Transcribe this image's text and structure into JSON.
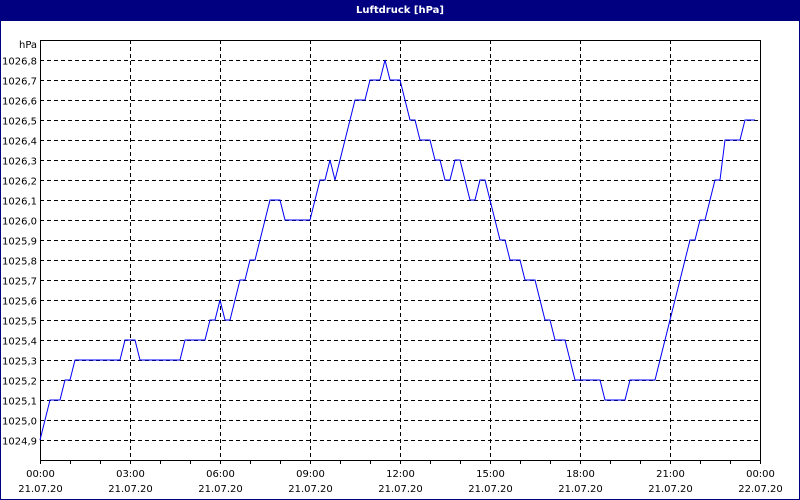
{
  "window": {
    "title": "Luftdruck [hPa]",
    "title_bar_color": "#000080"
  },
  "chart_data": {
    "type": "line",
    "title": "Luftdruck [hPa]",
    "ylabel": "hPa",
    "xlabel": "",
    "ylim": [
      1024.8,
      1026.9
    ],
    "y_ticks": [
      "1026,8",
      "1026,7",
      "1026,6",
      "1026,5",
      "1026,4",
      "1026,3",
      "1026,2",
      "1026,1",
      "1026,0",
      "1025,9",
      "1025,8",
      "1025,7",
      "1025,6",
      "1025,5",
      "1025,4",
      "1025,3",
      "1025,2",
      "1025,1",
      "1025,0",
      "1024,9"
    ],
    "x_range": [
      "21.07.20 00:00",
      "22.07.20 00:00"
    ],
    "x_ticks": [
      {
        "time": "00:00",
        "date": "21.07.20"
      },
      {
        "time": "03:00",
        "date": "21.07.20"
      },
      {
        "time": "06:00",
        "date": "21.07.20"
      },
      {
        "time": "09:00",
        "date": "21.07.20"
      },
      {
        "time": "12:00",
        "date": "21.07.20"
      },
      {
        "time": "15:00",
        "date": "21.07.20"
      },
      {
        "time": "18:00",
        "date": "21.07.20"
      },
      {
        "time": "21:00",
        "date": "21.07.20"
      },
      {
        "time": "00:00",
        "date": "22.07.20"
      }
    ],
    "grid": true,
    "line_color": "#0000ff",
    "series": [
      {
        "points": [
          [
            "00:00",
            1024.9
          ],
          [
            "00:20",
            1025.1
          ],
          [
            "00:40",
            1025.1
          ],
          [
            "00:50",
            1025.2
          ],
          [
            "01:00",
            1025.2
          ],
          [
            "01:10",
            1025.3
          ],
          [
            "02:40",
            1025.3
          ],
          [
            "02:50",
            1025.4
          ],
          [
            "03:10",
            1025.4
          ],
          [
            "03:20",
            1025.3
          ],
          [
            "04:40",
            1025.3
          ],
          [
            "04:50",
            1025.4
          ],
          [
            "05:30",
            1025.4
          ],
          [
            "05:40",
            1025.5
          ],
          [
            "05:50",
            1025.5
          ],
          [
            "06:00",
            1025.6
          ],
          [
            "06:10",
            1025.5
          ],
          [
            "06:20",
            1025.5
          ],
          [
            "06:30",
            1025.6
          ],
          [
            "06:40",
            1025.7
          ],
          [
            "06:50",
            1025.7
          ],
          [
            "07:00",
            1025.8
          ],
          [
            "07:10",
            1025.8
          ],
          [
            "07:40",
            1026.1
          ],
          [
            "08:00",
            1026.1
          ],
          [
            "08:10",
            1026.0
          ],
          [
            "09:00",
            1026.0
          ],
          [
            "09:20",
            1026.2
          ],
          [
            "09:30",
            1026.2
          ],
          [
            "09:40",
            1026.3
          ],
          [
            "09:50",
            1026.2
          ],
          [
            "10:30",
            1026.6
          ],
          [
            "10:50",
            1026.6
          ],
          [
            "11:00",
            1026.7
          ],
          [
            "11:20",
            1026.7
          ],
          [
            "11:30",
            1026.8
          ],
          [
            "11:40",
            1026.7
          ],
          [
            "12:00",
            1026.7
          ],
          [
            "12:20",
            1026.5
          ],
          [
            "12:30",
            1026.5
          ],
          [
            "12:40",
            1026.4
          ],
          [
            "13:00",
            1026.4
          ],
          [
            "13:10",
            1026.3
          ],
          [
            "13:20",
            1026.3
          ],
          [
            "13:30",
            1026.2
          ],
          [
            "13:40",
            1026.2
          ],
          [
            "13:50",
            1026.3
          ],
          [
            "14:00",
            1026.3
          ],
          [
            "14:20",
            1026.1
          ],
          [
            "14:30",
            1026.1
          ],
          [
            "14:40",
            1026.2
          ],
          [
            "14:50",
            1026.2
          ],
          [
            "15:20",
            1025.9
          ],
          [
            "15:30",
            1025.9
          ],
          [
            "15:40",
            1025.8
          ],
          [
            "16:00",
            1025.8
          ],
          [
            "16:10",
            1025.7
          ],
          [
            "16:30",
            1025.7
          ],
          [
            "16:50",
            1025.5
          ],
          [
            "17:00",
            1025.5
          ],
          [
            "17:10",
            1025.4
          ],
          [
            "17:30",
            1025.4
          ],
          [
            "17:50",
            1025.2
          ],
          [
            "18:40",
            1025.2
          ],
          [
            "18:50",
            1025.1
          ],
          [
            "19:30",
            1025.1
          ],
          [
            "19:40",
            1025.2
          ],
          [
            "20:30",
            1025.2
          ],
          [
            "21:40",
            1025.9
          ],
          [
            "21:50",
            1025.9
          ],
          [
            "22:00",
            1026.0
          ],
          [
            "22:10",
            1026.0
          ],
          [
            "22:30",
            1026.2
          ],
          [
            "22:40",
            1026.2
          ],
          [
            "22:50",
            1026.4
          ],
          [
            "23:20",
            1026.4
          ],
          [
            "23:30",
            1026.5
          ],
          [
            "23:50",
            1026.5
          ]
        ]
      }
    ]
  }
}
